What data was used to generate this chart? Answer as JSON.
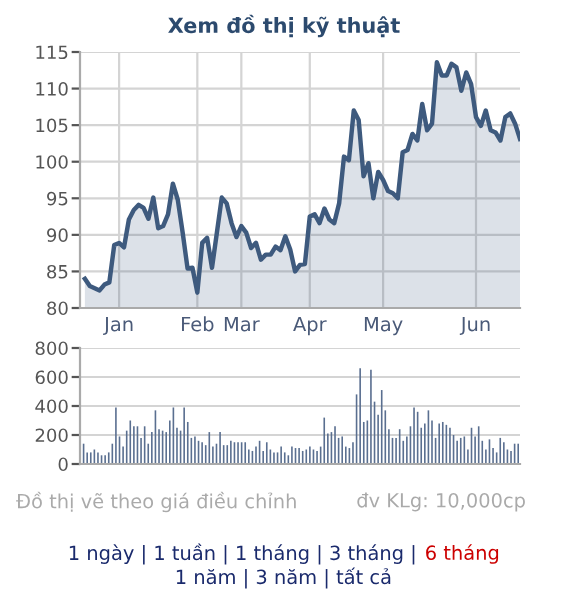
{
  "chart_data": [
    {
      "type": "area",
      "title": "Xem đồ thị kỹ thuật",
      "ylim": [
        80,
        115
      ],
      "yticks": [
        80,
        85,
        90,
        95,
        100,
        105,
        110,
        115
      ],
      "categories": [
        null,
        null,
        null,
        null,
        null,
        null,
        null,
        "Jan",
        null,
        null,
        null,
        null,
        null,
        null,
        null,
        null,
        null,
        null,
        null,
        null,
        null,
        null,
        null,
        "Feb",
        null,
        null,
        null,
        null,
        null,
        null,
        null,
        null,
        "Mar",
        null,
        null,
        null,
        null,
        null,
        null,
        null,
        null,
        null,
        null,
        null,
        null,
        null,
        "Apr",
        null,
        null,
        null,
        null,
        null,
        null,
        null,
        null,
        null,
        null,
        null,
        null,
        null,
        null,
        "May",
        null,
        null,
        null,
        null,
        null,
        null,
        null,
        null,
        null,
        null,
        null,
        null,
        null,
        null,
        null,
        null,
        null,
        null,
        "Jun",
        null,
        null,
        null,
        null,
        null,
        null,
        null,
        null,
        null
      ],
      "grid": true,
      "series": [
        {
          "color": "#3e5a7e",
          "values": [
            84.0,
            83.0,
            82.7,
            82.4,
            83.2,
            83.5,
            88.6,
            88.9,
            88.3,
            92.1,
            93.4,
            94.1,
            93.7,
            92.2,
            95.1,
            90.9,
            91.2,
            92.8,
            97.0,
            94.8,
            90.3,
            85.4,
            85.5,
            82.1,
            88.9,
            89.6,
            85.5,
            90.3,
            95.1,
            94.3,
            91.6,
            89.7,
            91.2,
            90.3,
            88.2,
            88.9,
            86.6,
            87.3,
            87.3,
            88.4,
            87.9,
            89.8,
            88.0,
            85.0,
            85.9,
            86.0,
            92.5,
            92.8,
            91.6,
            93.6,
            92.1,
            91.6,
            94.3,
            100.7,
            100.2,
            107.0,
            105.7,
            98.0,
            99.8,
            95.0,
            98.6,
            97.5,
            96.0,
            95.7,
            95.0,
            101.3,
            101.6,
            103.8,
            102.9,
            107.9,
            104.3,
            105.2,
            113.6,
            111.8,
            111.8,
            113.4,
            112.9,
            109.7,
            112.2,
            110.6,
            106.1,
            104.9,
            107.0,
            104.3,
            104.0,
            102.9,
            106.1,
            106.6,
            105.2,
            103.1
          ]
        }
      ],
      "annotations": [
        "Đồ thị vẽ theo giá điều chỉnh",
        "đv KLg: 10,000cp",
        "1 ngày | 1 tuần | 1 tháng | 3 tháng | ",
        "6 tháng",
        "1 năm | 3 năm | tất cả"
      ]
    },
    {
      "type": "bar",
      "ylim": [
        0,
        800
      ],
      "yticks": [
        0,
        200,
        400,
        600,
        800
      ],
      "tick_labels": "y",
      "grid": "y",
      "categories": [
        null,
        null,
        null,
        null,
        null,
        null,
        null,
        null,
        null,
        null,
        null,
        null,
        null,
        null,
        null,
        null,
        null,
        null,
        null,
        null,
        null,
        null,
        null,
        null,
        null,
        null,
        null,
        null,
        null,
        null,
        null,
        null,
        null,
        null,
        null,
        null,
        null,
        null,
        null,
        null,
        null,
        null,
        null,
        null,
        null,
        null,
        null,
        null,
        null,
        null,
        null,
        null,
        null,
        null,
        null,
        null,
        null,
        null,
        null,
        null,
        null,
        null,
        null,
        null,
        null,
        null,
        null,
        null,
        null,
        null,
        null,
        null,
        null,
        null,
        null,
        null,
        null,
        null,
        null,
        null,
        null,
        null,
        null,
        null,
        null,
        null,
        null,
        null,
        null,
        null,
        null,
        null,
        null,
        null,
        null,
        null,
        null,
        null,
        null,
        null,
        null,
        null,
        null,
        null,
        null,
        null,
        null,
        null,
        null,
        null,
        null,
        null,
        null,
        null,
        null,
        null,
        null,
        null,
        null,
        null,
        null,
        null
      ],
      "series": [
        {
          "color": "#5a6f90",
          "values": [
            140,
            80,
            80,
            100,
            80,
            60,
            60,
            80,
            140,
            390,
            190,
            120,
            230,
            300,
            260,
            260,
            180,
            260,
            140,
            220,
            370,
            240,
            230,
            220,
            300,
            390,
            250,
            230,
            390,
            290,
            180,
            190,
            160,
            150,
            130,
            220,
            120,
            140,
            220,
            130,
            130,
            160,
            150,
            150,
            150,
            150,
            100,
            90,
            120,
            160,
            90,
            150,
            100,
            80,
            80,
            120,
            80,
            60,
            120,
            110,
            110,
            90,
            100,
            120,
            100,
            90,
            120,
            320,
            210,
            220,
            260,
            180,
            190,
            120,
            110,
            150,
            480,
            660,
            290,
            300,
            650,
            430,
            340,
            510,
            370,
            240,
            180,
            180,
            240,
            160,
            190,
            260,
            390,
            360,
            250,
            280,
            370,
            300,
            180,
            280,
            290,
            270,
            250,
            200,
            160,
            180,
            190,
            100,
            250,
            190,
            260,
            160,
            100,
            170,
            110,
            80,
            180,
            150,
            100,
            90,
            140,
            140
          ]
        }
      ]
    }
  ]
}
